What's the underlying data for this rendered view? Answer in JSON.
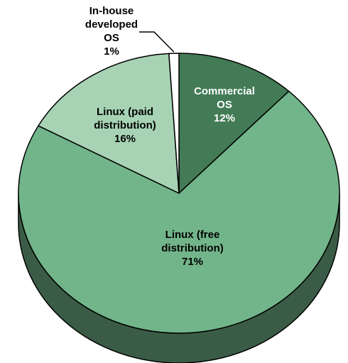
{
  "chart_data": {
    "type": "pie",
    "title": "",
    "slices": [
      {
        "label_lines": [
          "Commercial",
          "OS"
        ],
        "value": 12,
        "value_label": "12%",
        "color": "#437B56",
        "text_color": "#ffffff",
        "side_color": "#2F5A3D"
      },
      {
        "label_lines": [
          "Linux (free",
          "distribution)"
        ],
        "value": 71,
        "value_label": "71%",
        "color": "#72B58A",
        "text_color": "#000000",
        "side_color": "#3A5C46"
      },
      {
        "label_lines": [
          "Linux (paid",
          "distribution)"
        ],
        "value": 16,
        "value_label": "16%",
        "color": "#A7D3B4",
        "text_color": "#000000",
        "side_color": "#5E7A67"
      },
      {
        "label_lines": [
          "In-house",
          "developed",
          "OS"
        ],
        "value": 1,
        "value_label": "1%",
        "color": "#ffffff",
        "text_color": "#000000",
        "side_color": "#cccccc"
      }
    ],
    "style": "3d-pie",
    "legend": "none"
  }
}
